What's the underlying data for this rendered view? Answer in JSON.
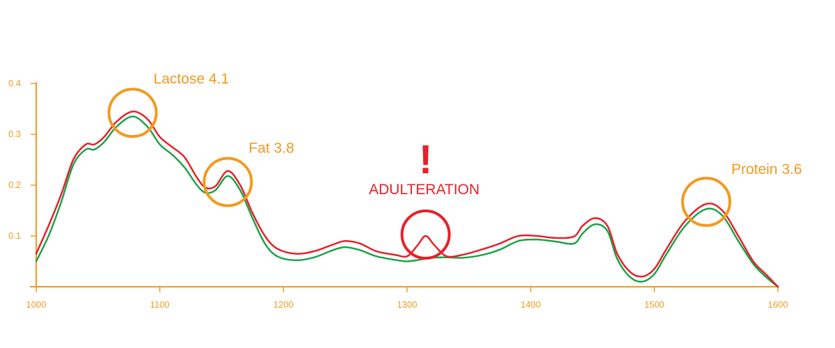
{
  "chart_data": {
    "type": "line",
    "title": "",
    "xlabel": "",
    "ylabel": "",
    "xlim": [
      1000,
      1600
    ],
    "ylim": [
      0,
      0.4
    ],
    "x_ticks": [
      "1000",
      "1100",
      "1200",
      "1300",
      "1400",
      "1500",
      "1600"
    ],
    "y_ticks": [
      "0.1",
      "0.2",
      "0.3",
      "0.4"
    ],
    "grid": false,
    "legend": "none",
    "colors": {
      "axis": "#F29A1F",
      "annotation": "#F29A1F",
      "alert": "#E8202A",
      "series_red": "#E8202A",
      "series_green": "#1BA34A"
    },
    "series": [
      {
        "color": "#E8202A",
        "x": [
          1000,
          1010,
          1020,
          1030,
          1040,
          1047,
          1055,
          1065,
          1078,
          1090,
          1100,
          1110,
          1120,
          1130,
          1137,
          1145,
          1155,
          1165,
          1175,
          1185,
          1195,
          1210,
          1225,
          1240,
          1250,
          1262,
          1275,
          1290,
          1300,
          1308,
          1315,
          1322,
          1332,
          1345,
          1360,
          1375,
          1390,
          1405,
          1420,
          1435,
          1442,
          1452,
          1462,
          1470,
          1480,
          1490,
          1500,
          1510,
          1525,
          1542,
          1555,
          1568,
          1580,
          1590,
          1600
        ],
        "y": [
          0.065,
          0.12,
          0.18,
          0.25,
          0.28,
          0.28,
          0.295,
          0.325,
          0.345,
          0.33,
          0.295,
          0.275,
          0.255,
          0.215,
          0.195,
          0.198,
          0.228,
          0.2,
          0.145,
          0.1,
          0.075,
          0.065,
          0.07,
          0.083,
          0.09,
          0.085,
          0.07,
          0.063,
          0.06,
          0.08,
          0.1,
          0.082,
          0.06,
          0.063,
          0.073,
          0.085,
          0.1,
          0.1,
          0.096,
          0.099,
          0.12,
          0.135,
          0.12,
          0.065,
          0.03,
          0.02,
          0.035,
          0.075,
          0.13,
          0.163,
          0.15,
          0.1,
          0.05,
          0.025,
          0.0
        ]
      },
      {
        "color": "#1BA34A",
        "x": [
          1000,
          1010,
          1020,
          1030,
          1040,
          1047,
          1055,
          1065,
          1078,
          1090,
          1100,
          1110,
          1120,
          1130,
          1137,
          1145,
          1155,
          1165,
          1175,
          1185,
          1195,
          1210,
          1225,
          1240,
          1250,
          1262,
          1275,
          1290,
          1300,
          1310,
          1320,
          1332,
          1345,
          1360,
          1375,
          1390,
          1405,
          1420,
          1435,
          1442,
          1452,
          1462,
          1470,
          1480,
          1490,
          1500,
          1510,
          1525,
          1542,
          1555,
          1568,
          1580,
          1590,
          1600
        ],
        "y": [
          0.05,
          0.1,
          0.165,
          0.24,
          0.27,
          0.27,
          0.285,
          0.315,
          0.335,
          0.315,
          0.28,
          0.26,
          0.235,
          0.2,
          0.185,
          0.19,
          0.218,
          0.19,
          0.135,
          0.085,
          0.06,
          0.052,
          0.058,
          0.072,
          0.078,
          0.072,
          0.06,
          0.053,
          0.05,
          0.053,
          0.057,
          0.058,
          0.057,
          0.062,
          0.073,
          0.09,
          0.093,
          0.089,
          0.085,
          0.105,
          0.123,
          0.11,
          0.055,
          0.02,
          0.01,
          0.025,
          0.065,
          0.12,
          0.153,
          0.14,
          0.09,
          0.045,
          0.02,
          0.0
        ]
      }
    ],
    "annotations": [
      {
        "label": "Lactose 4.1",
        "x": 1078,
        "y": 0.345,
        "color": "#F29A1F"
      },
      {
        "label": "Fat 3.8",
        "x": 1155,
        "y": 0.228,
        "color": "#F29A1F"
      },
      {
        "label": "Protein 3.6",
        "x": 1542,
        "y": 0.163,
        "color": "#F29A1F"
      }
    ],
    "alert": {
      "mark": "!",
      "label": "ADULTERATION",
      "x": 1315,
      "y": 0.1,
      "color": "#E8202A"
    }
  }
}
